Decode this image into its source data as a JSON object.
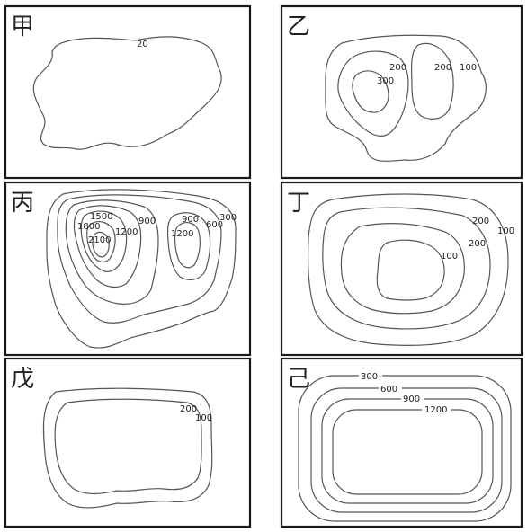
{
  "panels": [
    {
      "name": "甲",
      "labels": [
        "20"
      ]
    },
    {
      "name": "乙",
      "labels": [
        "200",
        "300",
        "200",
        "100"
      ]
    },
    {
      "name": "丙",
      "labels": [
        "1500",
        "1800",
        "2100",
        "1200",
        "900",
        "900",
        "1200",
        "600",
        "300"
      ]
    },
    {
      "name": "丁",
      "labels": [
        "200",
        "100",
        "200",
        "100"
      ]
    },
    {
      "name": "戊",
      "labels": [
        "200",
        "100"
      ]
    },
    {
      "name": "己",
      "labels": [
        "300",
        "600",
        "900",
        "1200"
      ]
    }
  ]
}
